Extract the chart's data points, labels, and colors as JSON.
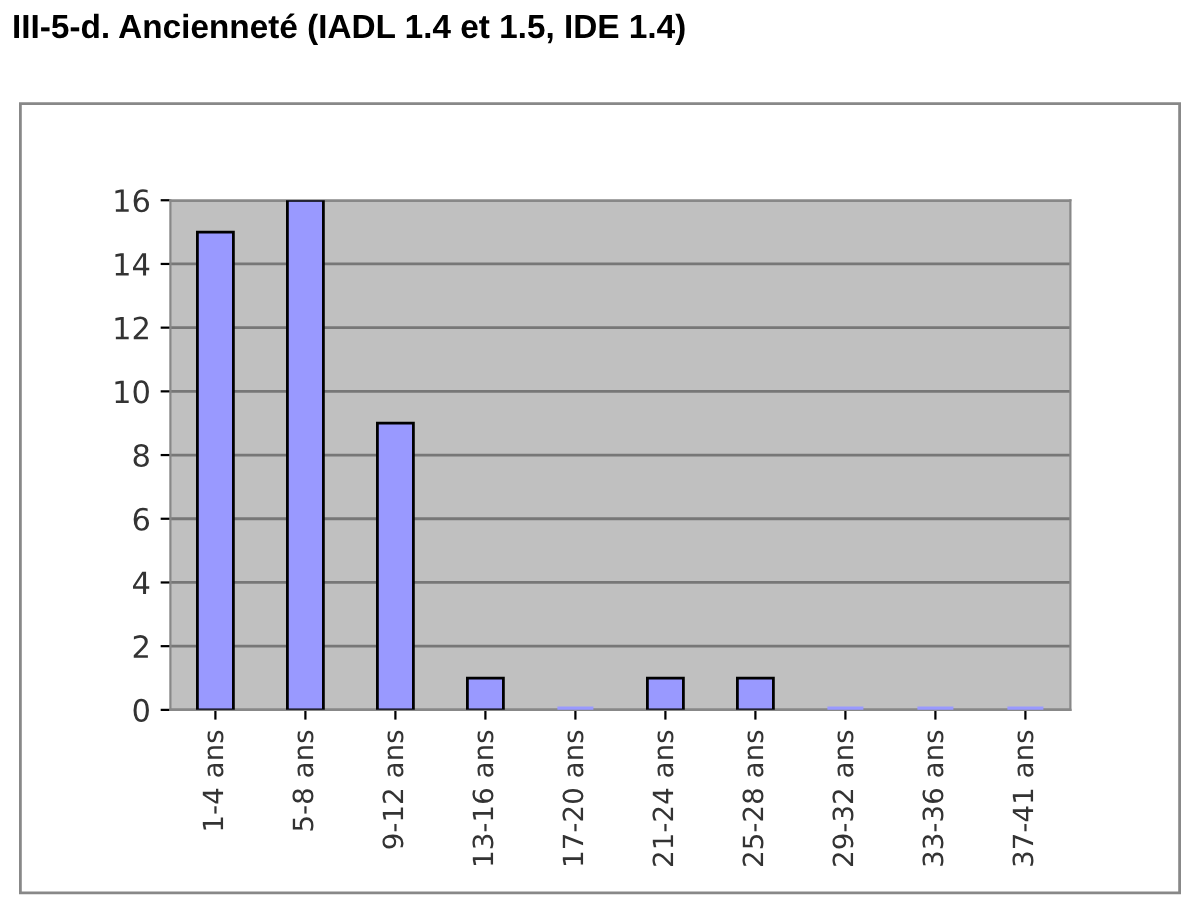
{
  "chart_data": {
    "type": "bar",
    "title": "III-5-d. Ancienneté (IADL 1.4 et 1.5, IDE 1.4)",
    "categories": [
      "1-4 ans",
      "5-8 ans",
      "9-12 ans",
      "13-16 ans",
      "17-20 ans",
      "21-24 ans",
      "25-28 ans",
      "29-32 ans",
      "33-36 ans",
      "37-41 ans"
    ],
    "values": [
      15,
      16,
      9,
      1,
      0,
      1,
      1,
      0,
      0,
      0
    ],
    "color": "#9999ff",
    "ylim": [
      0,
      16
    ],
    "yticks": [
      0,
      2,
      4,
      6,
      8,
      10,
      12,
      14,
      16
    ],
    "grid": "y"
  }
}
